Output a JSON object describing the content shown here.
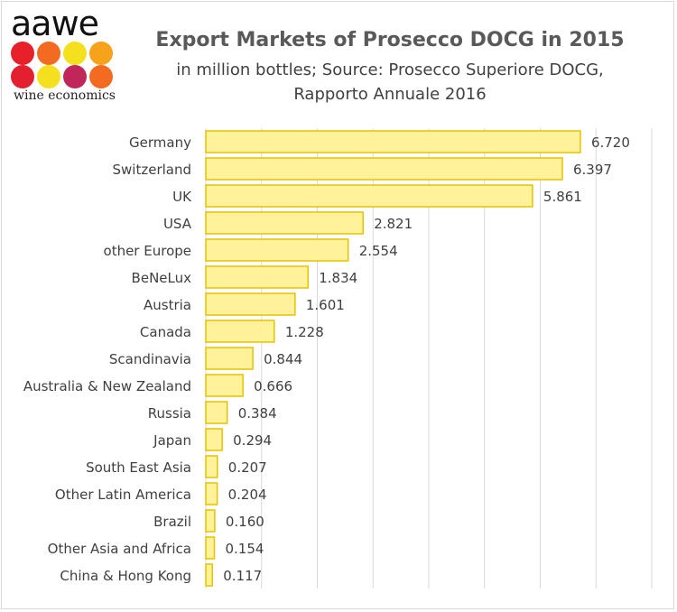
{
  "logo": {
    "word": "aawe",
    "subtitle": "wine economics",
    "dot_colors": [
      "#e8202a",
      "#f26b21",
      "#f4e01f",
      "#f7a21b",
      "#e3202f",
      "#f4e01f",
      "#c0265a",
      "#f26b21"
    ]
  },
  "chart_data": {
    "type": "bar",
    "orientation": "horizontal",
    "title": "Export Markets of Prosecco DOCG in 2015",
    "subtitle_lines": [
      "in million bottles; Source: Prosecco Superiore DOCG,",
      "Rapporto Annuale 2016"
    ],
    "categories": [
      "Germany",
      "Switzerland",
      "UK",
      "USA",
      "other Europe",
      "BeNeLux",
      "Austria",
      "Canada",
      "Scandinavia",
      "Australia & New Zealand",
      "Russia",
      "Japan",
      "South East Asia",
      "Other Latin America",
      "Brazil",
      "Other Asia and Africa",
      "China & Hong Kong"
    ],
    "values": [
      6.72,
      6.397,
      5.861,
      2.821,
      2.554,
      1.834,
      1.601,
      1.228,
      0.844,
      0.666,
      0.384,
      0.294,
      0.207,
      0.204,
      0.16,
      0.154,
      0.117
    ],
    "value_labels": [
      "6.720",
      "6.397",
      "5.861",
      "2.821",
      "2.554",
      "1.834",
      "1.601",
      "1.228",
      "0.844",
      "0.666",
      "0.384",
      "0.294",
      "0.207",
      "0.204",
      "0.160",
      "0.154",
      "0.117"
    ],
    "xlim": [
      0,
      8
    ],
    "grid": true,
    "bar_fill": "#fff29a",
    "bar_stroke": "#e6c200",
    "grid_color": "#d9d9d9"
  }
}
